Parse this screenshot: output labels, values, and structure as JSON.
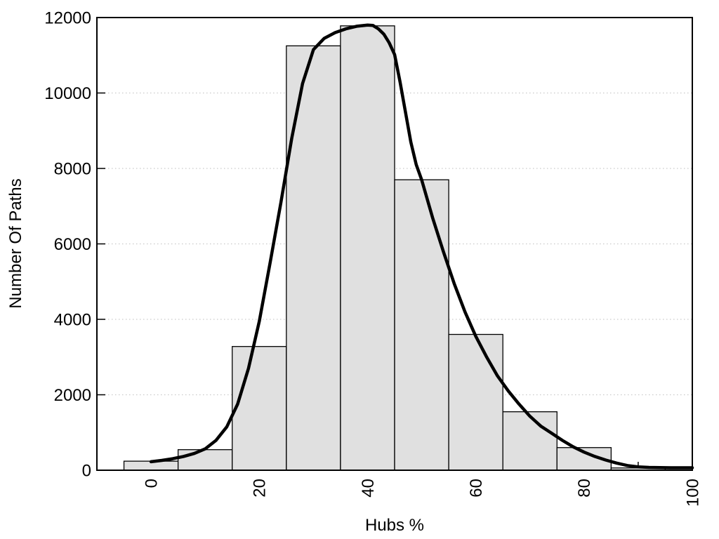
{
  "chart_data": {
    "type": "bar",
    "subtype": "histogram_with_density_curve",
    "title": "",
    "xlabel": "Hubs %",
    "ylabel": "Number Of Paths",
    "xlim": [
      -10,
      100
    ],
    "ylim": [
      0,
      12000
    ],
    "x_major_ticks": [
      0,
      20,
      40,
      60,
      80,
      100
    ],
    "x_minor_tick_step": 10,
    "y_ticks": [
      0,
      2000,
      4000,
      6000,
      8000,
      10000,
      12000
    ],
    "x_tick_label_rotation_deg": -90,
    "grid": "horizontal dotted lines at y ticks, full plot box frame",
    "legend": "none",
    "histogram": {
      "bin_width": 10,
      "bins": [
        {
          "x0": -5,
          "x1": 5,
          "count": 240
        },
        {
          "x0": 5,
          "x1": 15,
          "count": 545
        },
        {
          "x0": 15,
          "x1": 25,
          "count": 3280
        },
        {
          "x0": 25,
          "x1": 35,
          "count": 11250
        },
        {
          "x0": 35,
          "x1": 45,
          "count": 11780
        },
        {
          "x0": 45,
          "x1": 55,
          "count": 7700
        },
        {
          "x0": 55,
          "x1": 65,
          "count": 3600
        },
        {
          "x0": 65,
          "x1": 75,
          "count": 1550
        },
        {
          "x0": 75,
          "x1": 85,
          "count": 600
        },
        {
          "x0": 85,
          "x1": 95,
          "count": 60
        },
        {
          "x0": 95,
          "x1": 100,
          "count": 60
        }
      ]
    },
    "density_curve": {
      "points": [
        [
          0,
          225
        ],
        [
          2,
          260
        ],
        [
          4,
          305
        ],
        [
          6,
          365
        ],
        [
          8,
          445
        ],
        [
          10,
          565
        ],
        [
          12,
          790
        ],
        [
          14,
          1150
        ],
        [
          16,
          1750
        ],
        [
          18,
          2700
        ],
        [
          20,
          3950
        ],
        [
          22,
          5500
        ],
        [
          24,
          7100
        ],
        [
          26,
          8800
        ],
        [
          28,
          10250
        ],
        [
          30,
          11150
        ],
        [
          32,
          11450
        ],
        [
          34,
          11600
        ],
        [
          36,
          11700
        ],
        [
          38,
          11770
        ],
        [
          40,
          11800
        ],
        [
          41,
          11790
        ],
        [
          42,
          11700
        ],
        [
          43,
          11560
        ],
        [
          44,
          11330
        ],
        [
          45,
          11020
        ],
        [
          46,
          10300
        ],
        [
          47,
          9500
        ],
        [
          48,
          8700
        ],
        [
          49,
          8100
        ],
        [
          50,
          7700
        ],
        [
          52,
          6700
        ],
        [
          54,
          5800
        ],
        [
          56,
          4950
        ],
        [
          58,
          4200
        ],
        [
          60,
          3550
        ],
        [
          62,
          3000
        ],
        [
          64,
          2500
        ],
        [
          66,
          2100
        ],
        [
          68,
          1750
        ],
        [
          70,
          1430
        ],
        [
          72,
          1170
        ],
        [
          74,
          980
        ],
        [
          76,
          790
        ],
        [
          78,
          620
        ],
        [
          80,
          480
        ],
        [
          82,
          365
        ],
        [
          84,
          270
        ],
        [
          86,
          190
        ],
        [
          88,
          125
        ],
        [
          90,
          90
        ],
        [
          92,
          75
        ],
        [
          94,
          68
        ],
        [
          96,
          65
        ],
        [
          98,
          65
        ],
        [
          100,
          65
        ]
      ]
    },
    "colors": {
      "background": "#ffffff",
      "bar_fill": "#e0e0e0",
      "bar_stroke": "#000000",
      "curve": "#000000",
      "grid": "#c9c9c9",
      "axis": "#000000",
      "text": "#000000"
    }
  }
}
